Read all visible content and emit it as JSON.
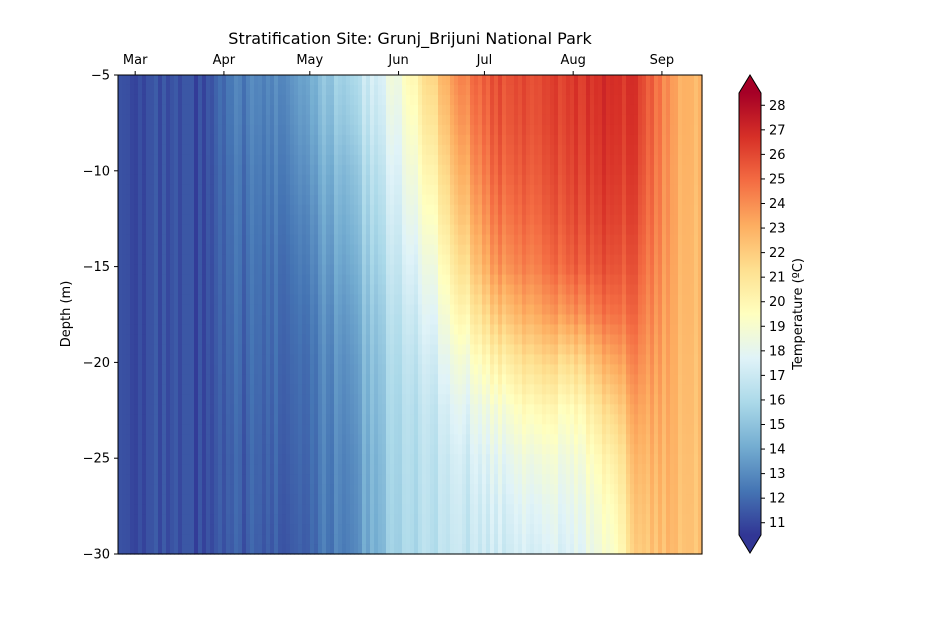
{
  "chart_data": {
    "type": "heatmap",
    "title": "Stratification Site: Grunj_Brijuni National Park",
    "ylabel": "Depth (m)",
    "xlabel": "",
    "x_axis_position": "top",
    "x_ticks": [
      "Mar",
      "Apr",
      "May",
      "Jun",
      "Jul",
      "Aug",
      "Sep"
    ],
    "x_start": "2024-02-24",
    "x_end": "2024-09-15",
    "x_tick_dates": [
      "2024-03-01",
      "2024-04-01",
      "2024-05-01",
      "2024-06-01",
      "2024-07-01",
      "2024-08-01",
      "2024-09-01"
    ],
    "y_ticks": [
      -5,
      -10,
      -15,
      -20,
      -25,
      -30
    ],
    "ylim": [
      -30,
      -5
    ],
    "grid": false,
    "colorbar": {
      "label": "Temperature (ºC)",
      "min": 10.5,
      "max": 28.5,
      "ticks": [
        11,
        12,
        13,
        14,
        15,
        16,
        17,
        18,
        19,
        20,
        21,
        22,
        23,
        24,
        25,
        26,
        27,
        28
      ],
      "colormap": "RdYlBu_r",
      "extend": "both",
      "colors": [
        "#313695",
        "#4575b4",
        "#74add1",
        "#abd9e9",
        "#e0f3f8",
        "#ffffbf",
        "#fee090",
        "#fdae61",
        "#f46d43",
        "#d73027",
        "#a50026"
      ]
    },
    "depth_levels": [
      -5,
      -7.5,
      -10,
      -12.5,
      -15,
      -17.5,
      -20,
      -22.5,
      -25,
      -27.5,
      -30
    ],
    "profiles": [
      {
        "date": "2024-02-24",
        "temps": [
          11.3,
          11.3,
          11.3,
          11.3,
          11.3,
          11.3,
          11.3,
          11.3,
          11.3,
          11.3,
          11.3
        ]
      },
      {
        "date": "2024-03-15",
        "temps": [
          11.1,
          11.1,
          11.1,
          11.1,
          11.1,
          11.1,
          11.1,
          11.1,
          11.1,
          11.1,
          11.1
        ]
      },
      {
        "date": "2024-03-25",
        "temps": [
          11.0,
          11.0,
          11.0,
          11.0,
          11.0,
          11.0,
          11.0,
          11.0,
          11.0,
          11.0,
          11.0
        ]
      },
      {
        "date": "2024-04-05",
        "temps": [
          12.5,
          12.4,
          12.2,
          12.1,
          12.0,
          11.9,
          11.8,
          11.7,
          11.6,
          11.6,
          11.5
        ]
      },
      {
        "date": "2024-04-20",
        "temps": [
          13.0,
          12.8,
          12.6,
          12.4,
          12.2,
          12.1,
          12.0,
          11.9,
          11.8,
          11.7,
          11.6
        ]
      },
      {
        "date": "2024-05-01",
        "temps": [
          14.3,
          14.0,
          13.6,
          13.2,
          12.9,
          12.6,
          12.4,
          12.3,
          12.2,
          12.1,
          12.0
        ]
      },
      {
        "date": "2024-05-15",
        "temps": [
          16.0,
          15.6,
          15.0,
          14.6,
          14.2,
          13.8,
          13.5,
          13.3,
          13.1,
          13.0,
          12.9
        ]
      },
      {
        "date": "2024-05-25",
        "temps": [
          17.6,
          17.2,
          16.7,
          16.3,
          15.9,
          15.5,
          15.2,
          15.0,
          14.8,
          14.7,
          14.6
        ]
      },
      {
        "date": "2024-06-01",
        "temps": [
          18.8,
          18.3,
          17.8,
          17.4,
          17.0,
          16.6,
          16.3,
          16.1,
          16.0,
          15.9,
          15.8
        ]
      },
      {
        "date": "2024-06-12",
        "temps": [
          21.5,
          20.8,
          20.0,
          19.2,
          18.3,
          17.6,
          17.0,
          16.6,
          16.4,
          16.3,
          16.2
        ]
      },
      {
        "date": "2024-06-25",
        "temps": [
          24.5,
          24.0,
          23.3,
          22.5,
          21.5,
          20.2,
          18.8,
          17.8,
          17.2,
          16.9,
          16.7
        ]
      },
      {
        "date": "2024-07-05",
        "temps": [
          25.8,
          25.6,
          25.2,
          24.6,
          23.8,
          22.2,
          20.3,
          18.8,
          17.9,
          17.4,
          17.1
        ]
      },
      {
        "date": "2024-07-20",
        "temps": [
          26.0,
          25.9,
          25.6,
          25.2,
          24.6,
          23.4,
          21.6,
          20.0,
          18.8,
          18.0,
          17.5
        ]
      },
      {
        "date": "2024-08-01",
        "temps": [
          26.4,
          26.3,
          26.1,
          25.8,
          25.3,
          23.8,
          21.4,
          19.6,
          18.6,
          18.0,
          17.6
        ]
      },
      {
        "date": "2024-08-15",
        "temps": [
          27.0,
          26.9,
          26.7,
          26.4,
          25.9,
          25.0,
          23.4,
          21.8,
          20.6,
          19.8,
          19.3
        ]
      },
      {
        "date": "2024-08-25",
        "temps": [
          26.2,
          26.1,
          25.9,
          25.6,
          25.2,
          24.7,
          24.1,
          23.5,
          23.0,
          22.6,
          22.3
        ]
      },
      {
        "date": "2024-09-05",
        "temps": [
          23.4,
          23.4,
          23.3,
          23.3,
          23.2,
          23.1,
          23.0,
          22.9,
          22.8,
          22.7,
          22.6
        ]
      },
      {
        "date": "2024-09-15",
        "temps": [
          22.6,
          22.6,
          22.6,
          22.5,
          22.5,
          22.5,
          22.4,
          22.4,
          22.3,
          22.3,
          22.3
        ]
      }
    ]
  }
}
